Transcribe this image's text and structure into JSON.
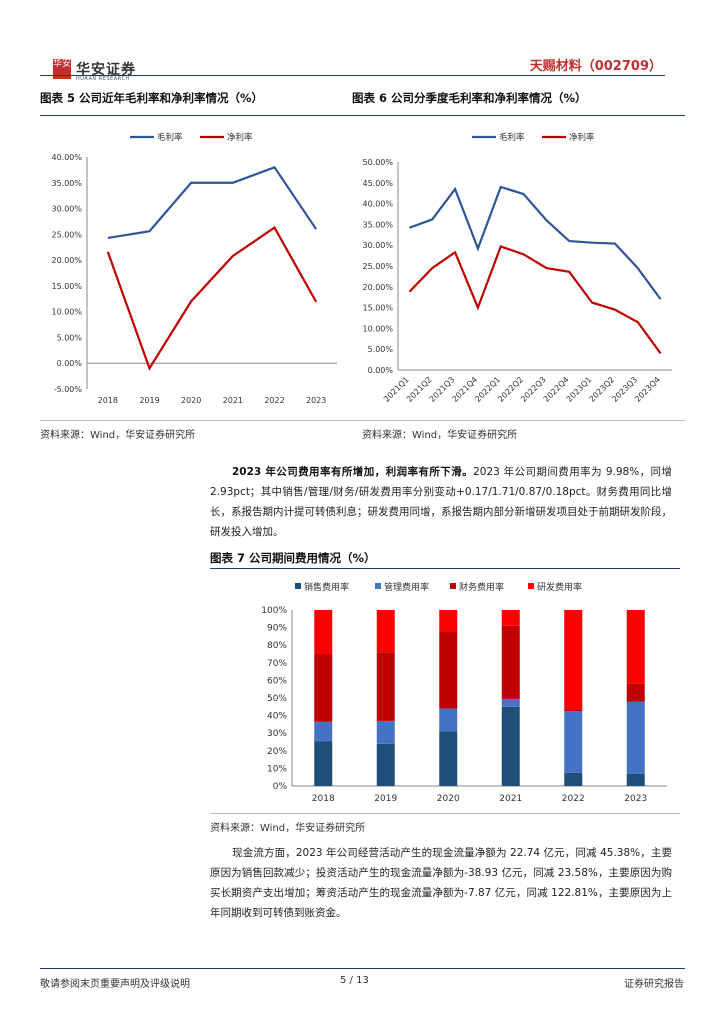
{
  "header": {
    "logo_mark": "华安",
    "logo_cn": "华安证券",
    "logo_en": "HUAAN RESEARCH",
    "company_title": "天赐材料（002709）"
  },
  "fig5": {
    "title": "图表 5 公司近年毛利率和净利率情况（%）",
    "source": "资料来源：Wind，华安证券研究所"
  },
  "fig6": {
    "title": "图表 6 公司分季度毛利率和净利率情况（%）",
    "source": "资料来源：Wind，华安证券研究所"
  },
  "para1": {
    "lead": "2023 年公司费用率有所增加，利润率有所下滑。",
    "text": "2023 年公司期间费用率为 9.98%，同增 2.93pct；其中销售/管理/财务/研发费用率分别变动+0.17/1.71/0.87/0.18pct。财务费用同比增长，系报告期内计提可转债利息；研发费用同增，系报告期内部分新增研发项目处于前期研发阶段，研发投入增加。"
  },
  "fig7": {
    "title": "图表 7 公司期间费用情况（%）",
    "source": "资料来源：Wind，华安证券研究所"
  },
  "para2": {
    "text": "现金流方面，2023 年公司经营活动产生的现金流量净额为 22.74 亿元，同减 45.38%，主要原因为销售回款减少；投资活动产生的现金流量净额为-38.93 亿元，同减 23.58%，主要原因为购买长期资产支出增加；筹资活动产生的现金流量净额为-7.87 亿元，同减 122.81%，主要原因为上年同期收到可转债到账资金。"
  },
  "footer": {
    "left": "敬请参阅末页重要声明及评级说明",
    "page": "5 / 13",
    "right": "证券研究报告"
  },
  "colors": {
    "blue": "#2f5597",
    "red": "#c00000",
    "navy": "#1f4e79",
    "mid_blue": "#4472c4",
    "dark_red": "#c00000",
    "bright_red": "#ff0000"
  },
  "chart_data": [
    {
      "type": "line",
      "title": "",
      "categories": [
        "2018",
        "2019",
        "2020",
        "2021",
        "2022",
        "2023"
      ],
      "series": [
        {
          "name": "毛利率",
          "values": [
            24.3,
            25.6,
            35.0,
            35.0,
            38.0,
            26.0
          ]
        },
        {
          "name": "净利率",
          "values": [
            21.6,
            -1.0,
            12.0,
            20.8,
            26.3,
            11.9
          ]
        }
      ],
      "ylim": [
        -5,
        40
      ],
      "yticks": [
        "-5.00%",
        "0.00%",
        "5.00%",
        "10.00%",
        "15.00%",
        "20.00%",
        "25.00%",
        "30.00%",
        "35.00%",
        "40.00%"
      ],
      "legend": "top-center"
    },
    {
      "type": "line",
      "title": "",
      "categories": [
        "2021Q1",
        "2021Q2",
        "2021Q3",
        "2021Q4",
        "2022Q1",
        "2022Q2",
        "2022Q3",
        "2022Q4",
        "2023Q1",
        "2023Q2",
        "2023Q3",
        "2023Q4"
      ],
      "series": [
        {
          "name": "毛利率",
          "values": [
            34.2,
            36.2,
            43.5,
            29.2,
            44.0,
            42.3,
            36.0,
            31.0,
            30.6,
            30.4,
            24.5,
            17.0
          ]
        },
        {
          "name": "净利率",
          "values": [
            18.8,
            24.5,
            28.3,
            15.0,
            29.7,
            27.8,
            24.5,
            23.6,
            16.2,
            14.5,
            11.5,
            4.0
          ]
        }
      ],
      "ylim": [
        0,
        50
      ],
      "yticks": [
        "0.00%",
        "5.00%",
        "10.00%",
        "15.00%",
        "20.00%",
        "25.00%",
        "30.00%",
        "35.00%",
        "40.00%",
        "45.00%",
        "50.00%"
      ],
      "legend": "top-center"
    },
    {
      "type": "bar",
      "stacked": true,
      "categories": [
        "2018",
        "2019",
        "2020",
        "2021",
        "2022",
        "2023"
      ],
      "series": [
        {
          "name": "销售费用率",
          "values": [
            25.5,
            24.0,
            31.0,
            45.0,
            7.5,
            7.0
          ]
        },
        {
          "name": "管理费用率",
          "values": [
            11.0,
            13.0,
            13.0,
            4.5,
            35.0,
            41.0
          ]
        },
        {
          "name": "财务费用率",
          "values": [
            38.5,
            39.0,
            44.0,
            41.5,
            1.0,
            10.0
          ]
        },
        {
          "name": "研发费用率",
          "values": [
            25.0,
            24.0,
            12.0,
            9.0,
            56.5,
            42.0
          ]
        }
      ],
      "ylim": [
        0,
        100
      ],
      "yticks": [
        "0%",
        "10%",
        "20%",
        "30%",
        "40%",
        "50%",
        "60%",
        "70%",
        "80%",
        "90%",
        "100%"
      ],
      "legend": "top-center"
    }
  ]
}
